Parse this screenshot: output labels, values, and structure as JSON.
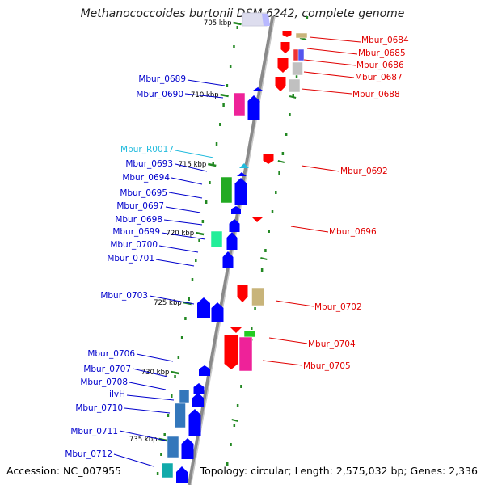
{
  "title": "Methanococcoides burtonii DSM 6242, complete genome",
  "accession": "Accession: NC_007955",
  "topology": "Topology: circular; Length: 2,575,032 bp; Genes: 2,336",
  "scale_labels": [
    "705 kbp",
    "710 kbp",
    "715 kbp",
    "720 kbp",
    "725 kbp",
    "730 kbp",
    "735 kbp"
  ],
  "colors": {
    "forward_label": "#0000cc",
    "reverse_label": "#e00000",
    "rna_label": "#22bbdd",
    "backbone": "#8a8a8a",
    "tick": "#228822"
  },
  "reverse_genes": [
    {
      "label": "Mbur_0684",
      "fill": "#c8b47a"
    },
    {
      "label": "Mbur_0685",
      "fill": "#5555ee"
    },
    {
      "label": "Mbur_0686",
      "fill": "#c0c0c0"
    },
    {
      "label": "Mbur_0687",
      "fill": "#ff0000"
    },
    {
      "label": "Mbur_0688",
      "fill": "#c0c0c0"
    },
    {
      "label": "Mbur_0692",
      "fill": "#ff0000"
    },
    {
      "label": "Mbur_0696",
      "fill": "#ff0000"
    },
    {
      "label": "Mbur_0702",
      "fill": "#c8b47a"
    },
    {
      "label": "Mbur_0704",
      "fill": "#22cc22"
    },
    {
      "label": "Mbur_0705",
      "fill": "#ee2299"
    }
  ],
  "forward_genes": [
    {
      "label": "Mbur_0689",
      "fill": "#ee2299"
    },
    {
      "label": "Mbur_0690",
      "fill": "#0000ff"
    },
    {
      "label": "Mbur_R0017",
      "fill": "#22bbdd"
    },
    {
      "label": "Mbur_0693",
      "fill": "#0000ff"
    },
    {
      "label": "Mbur_0694",
      "fill": "#22aa22"
    },
    {
      "label": "Mbur_0695",
      "fill": "#0000ff"
    },
    {
      "label": "Mbur_0697",
      "fill": "#0000ff"
    },
    {
      "label": "Mbur_0698",
      "fill": "#0000ff"
    },
    {
      "label": "Mbur_0699",
      "fill": "#22ee99"
    },
    {
      "label": "Mbur_0700",
      "fill": "#0000ff"
    },
    {
      "label": "Mbur_0701",
      "fill": "#0000ff"
    },
    {
      "label": "Mbur_0703",
      "fill": "#0000ff"
    },
    {
      "label": "Mbur_0706",
      "fill": "#0000ff"
    },
    {
      "label": "Mbur_0707",
      "fill": "#0000ff"
    },
    {
      "label": "Mbur_0708",
      "fill": "#0000ff"
    },
    {
      "label": "ilvH",
      "fill": "#3377bb"
    },
    {
      "label": "Mbur_0710",
      "fill": "#3377bb"
    },
    {
      "label": "Mbur_0711",
      "fill": "#0000ff"
    },
    {
      "label": "Mbur_0712",
      "fill": "#11aaaa"
    }
  ]
}
